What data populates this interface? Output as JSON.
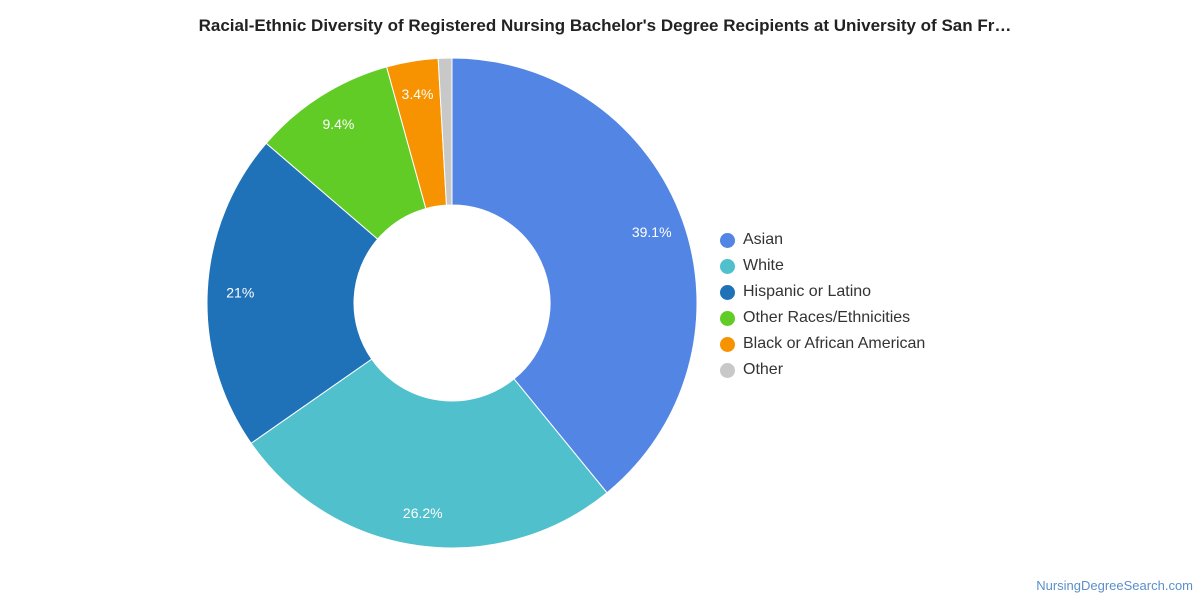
{
  "chart_data": {
    "type": "pie",
    "title": "Racial-Ethnic Diversity of Registered Nursing Bachelor's Degree Recipients at University of San Fr…",
    "slices": [
      {
        "label": "Asian",
        "value": 39.1,
        "value_label": "39.1%",
        "color": "#5386e4"
      },
      {
        "label": "White",
        "value": 26.2,
        "value_label": "26.2%",
        "color": "#50c0cc"
      },
      {
        "label": "Hispanic or Latino",
        "value": 21.0,
        "value_label": "21%",
        "color": "#1f72b8"
      },
      {
        "label": "Other Races/Ethnicities",
        "value": 9.4,
        "value_label": "9.4%",
        "color": "#62cc27"
      },
      {
        "label": "Black or African American",
        "value": 3.4,
        "value_label": "3.4%",
        "color": "#f79300"
      },
      {
        "label": "Other",
        "value": 0.9,
        "value_label": "",
        "color": "#c8c8c8"
      }
    ],
    "legend_position": "right"
  },
  "source": "NursingDegreeSearch.com"
}
